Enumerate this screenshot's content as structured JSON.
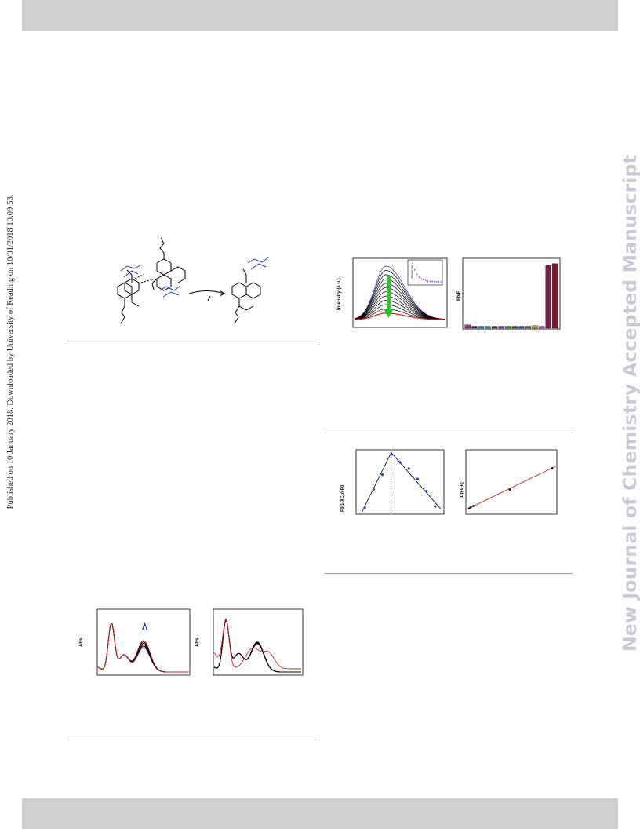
{
  "sidebar": {
    "published_line": "Published on 10 January 2018. Downloaded by University of Reading on 10/01/2018 10:09:53.",
    "journal_watermark": "New Journal of Chemistry Accepted Manuscript"
  },
  "figures": {
    "fluorescence": {
      "ylabel_left": "Intensity (a.u.)",
      "inset_ylabel": "Intensity (au)",
      "ylabel_right": "F0/F"
    },
    "job_plot": {
      "ylabel_left": "F0(1-XCu)-F0",
      "ylabel_right": "1/(F0-F)"
    },
    "absorbance": {
      "ylabel_left": "Abs",
      "ylabel_right": "Abs"
    }
  },
  "chart_data": [
    {
      "type": "line",
      "id": "fluorescence-titration",
      "ylabel": "Intensity (a.u.)",
      "series_count": 12,
      "peak_values": [
        1.0,
        0.92,
        0.84,
        0.76,
        0.68,
        0.6,
        0.52,
        0.44,
        0.36,
        0.28,
        0.2,
        0.12
      ],
      "colors": {
        "first": "#1f2fd0",
        "last": "#d01a1a",
        "middle": "#000000",
        "arrow": "#22cc22"
      }
    },
    {
      "type": "bar",
      "id": "selectivity",
      "ylabel": "F0/F",
      "values": [
        0.05,
        0.03,
        0.03,
        0.03,
        0.03,
        0.03,
        0.03,
        0.03,
        0.03,
        0.03,
        0.04,
        0.03,
        0.95,
        0.98
      ],
      "colors": [
        "#a0307a",
        "#3a3a3a",
        "#4a7ad0",
        "#3aa0a0",
        "#404040",
        "#7a3ad0",
        "#2a9a3a",
        "#404040",
        "#3050d0",
        "#606060",
        "#b0a020",
        "#d050d0",
        "#7a2050",
        "#7a1a2a"
      ]
    },
    {
      "type": "scatter",
      "id": "job-plot",
      "ylabel": "F0(1-XCu)-F0",
      "x": [
        0.1,
        0.2,
        0.3,
        0.4,
        0.5,
        0.6,
        0.7,
        0.8,
        0.9
      ],
      "y": [
        0.08,
        0.38,
        0.62,
        0.95,
        0.82,
        0.72,
        0.55,
        0.35,
        0.1
      ],
      "apex_x": 0.4
    },
    {
      "type": "scatter",
      "id": "benesi-hildebrand",
      "ylabel": "1/(F0-F)",
      "x": [
        0.02,
        0.04,
        0.07,
        0.5,
        1.0
      ],
      "y": [
        0.08,
        0.1,
        0.12,
        0.38,
        0.72
      ]
    },
    {
      "type": "line",
      "id": "absorbance-titration",
      "ylabel": "Abs",
      "peak2_values": [
        0.52,
        0.55,
        0.58,
        0.61,
        0.64,
        0.67
      ]
    },
    {
      "type": "line",
      "id": "absorbance-compare",
      "ylabel": "Abs"
    }
  ]
}
